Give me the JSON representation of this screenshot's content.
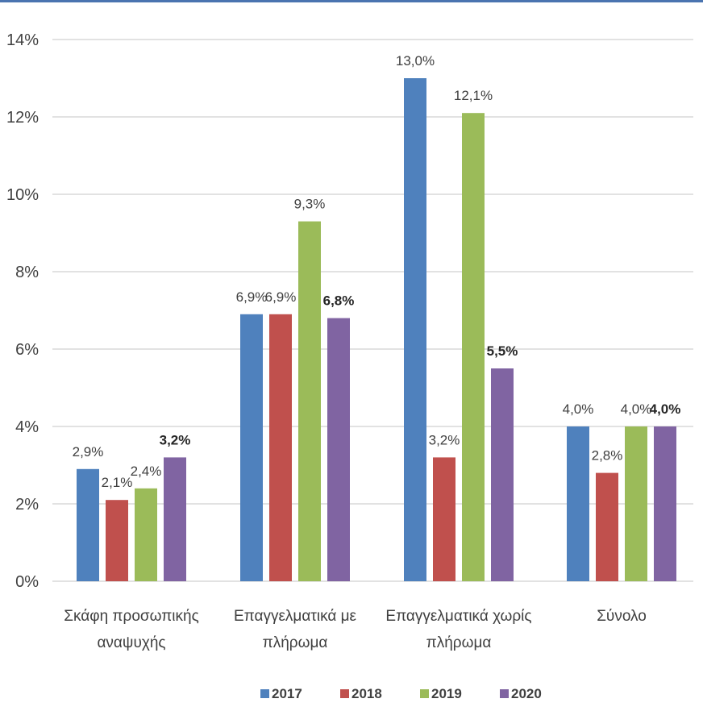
{
  "chart_data": {
    "type": "bar",
    "categories": [
      [
        "Σκάφη προσωπικής",
        "αναψυχής"
      ],
      [
        "Επαγγελματικά με",
        "πλήρωμα"
      ],
      [
        "Επαγγελματικά χωρίς",
        "πλήρωμα"
      ],
      [
        "Σύνολο"
      ]
    ],
    "series": [
      {
        "name": "2017",
        "color": "#4f81bd",
        "values": [
          2.9,
          6.9,
          13.0,
          4.0
        ],
        "labels": [
          "2,9%",
          "6,9%",
          "13,0%",
          "4,0%"
        ],
        "label_bold": false
      },
      {
        "name": "2018",
        "color": "#c0504d",
        "values": [
          2.1,
          6.9,
          3.2,
          2.8
        ],
        "labels": [
          "2,1%",
          "6,9%",
          "3,2%",
          "2,8%"
        ],
        "label_bold": false
      },
      {
        "name": "2019",
        "color": "#9bbb59",
        "values": [
          2.4,
          9.3,
          12.1,
          4.0
        ],
        "labels": [
          "2,4%",
          "9,3%",
          "12,1%",
          "4,0%"
        ],
        "label_bold": false
      },
      {
        "name": "2020",
        "color": "#8064a2",
        "values": [
          3.2,
          6.8,
          5.5,
          4.0
        ],
        "labels": [
          "3,2%",
          "6,8%",
          "5,5%",
          "4,0%"
        ],
        "label_bold": true
      }
    ],
    "y_ticks": [
      0,
      2,
      4,
      6,
      8,
      10,
      12,
      14
    ],
    "y_tick_labels": [
      "0%",
      "2%",
      "4%",
      "6%",
      "8%",
      "10%",
      "12%",
      "14%"
    ],
    "ylim": [
      0,
      14
    ],
    "grid": true,
    "legend_position": "bottom"
  }
}
